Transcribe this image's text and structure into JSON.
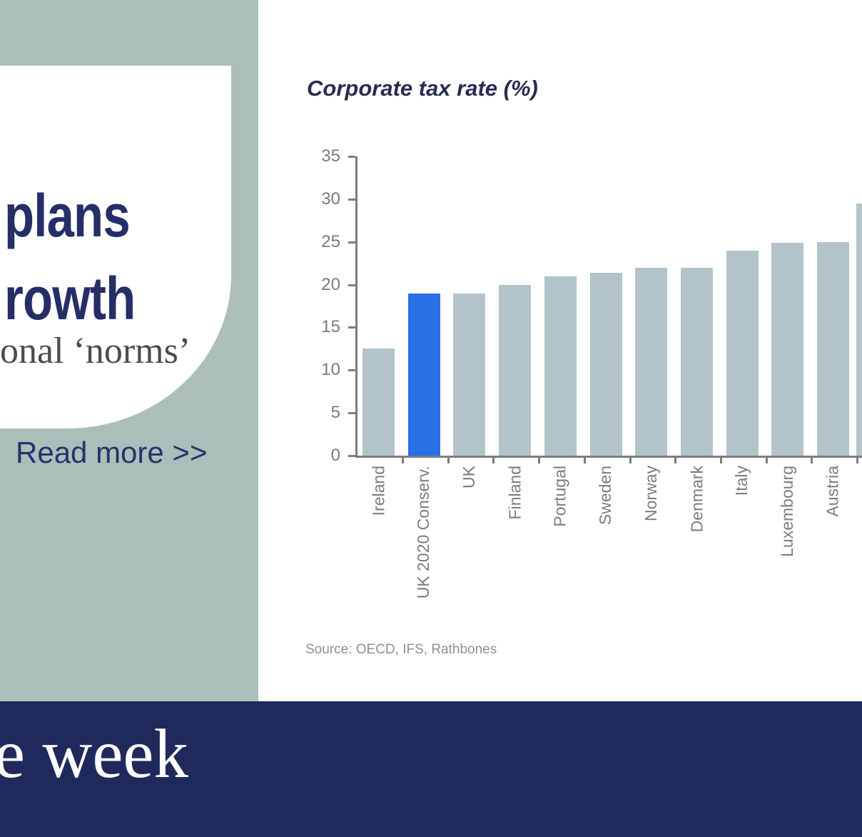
{
  "left_panel": {
    "headline_line1": "plans",
    "headline_line2": "rowth",
    "subtitle_fragment": "onal ‘norms’",
    "read_more_label": "Read more >>"
  },
  "footer": {
    "text_fragment": "e week"
  },
  "colors": {
    "background_green": "#acbeba",
    "bar_gray": "#b2c4ca",
    "highlight_blue": "#2a70e6",
    "footer_navy": "#20295c",
    "headline_navy": "#252e66",
    "axis_gray": "#7d7d7d"
  },
  "chart_data": {
    "type": "bar",
    "title": "Corporate tax rate (%)",
    "source": "Source: OECD, IFS, Rathbones",
    "xlabel": "",
    "ylabel": "Corporate tax rate (%)",
    "ylim": [
      0,
      35
    ],
    "yticks": [
      0,
      5,
      10,
      15,
      20,
      25,
      30,
      35
    ],
    "grid": false,
    "legend": "none",
    "categories": [
      "Ireland",
      "UK 2020 Conserv.",
      "UK",
      "Finland",
      "Portugal",
      "Sweden",
      "Norway",
      "Denmark",
      "Italy",
      "Luxembourg",
      "Austria"
    ],
    "values": [
      12.5,
      19,
      19,
      20,
      21,
      21.4,
      22,
      22,
      24,
      24.9,
      25
    ],
    "highlight_index": 1,
    "highlight_label": "UK 2020 Conserv.",
    "partial_bar": {
      "label": "",
      "value": 29.5,
      "note": "unlabeled bar cut off at right edge"
    },
    "bar_color": "#b2c4ca",
    "highlight_color": "#2a70e6"
  }
}
